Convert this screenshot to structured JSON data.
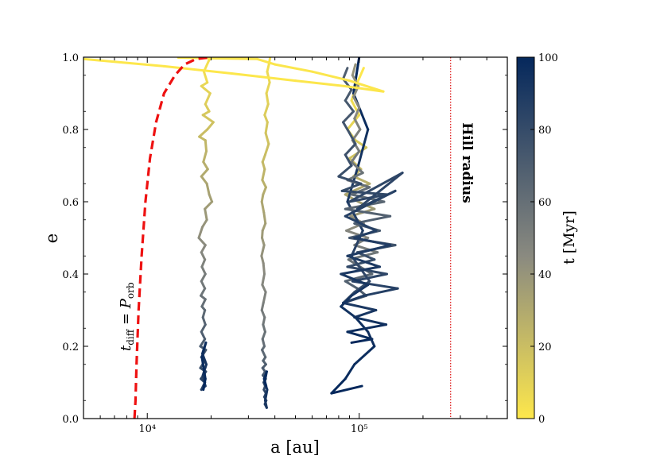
{
  "chart_data": {
    "type": "line",
    "xlabel": "a [au]",
    "ylabel": "e",
    "xscale": "log",
    "xlim": [
      5000,
      500000
    ],
    "ylim": [
      0,
      1
    ],
    "x_major_ticks": [
      {
        "value": 10000,
        "label": "10⁴"
      },
      {
        "value": 100000,
        "label": "10⁵"
      }
    ],
    "y_ticks": [
      {
        "value": 0.0,
        "label": "0.0"
      },
      {
        "value": 0.2,
        "label": "0.2"
      },
      {
        "value": 0.4,
        "label": "0.4"
      },
      {
        "value": 0.6,
        "label": "0.6"
      },
      {
        "value": 0.8,
        "label": "0.8"
      },
      {
        "value": 1.0,
        "label": "1.0"
      }
    ],
    "grid": false,
    "colorbar": {
      "label": "t [Myr]",
      "range": [
        0,
        100
      ],
      "ticks": [
        {
          "value": 0,
          "label": "0"
        },
        {
          "value": 20,
          "label": "20"
        },
        {
          "value": 40,
          "label": "40"
        },
        {
          "value": 60,
          "label": "60"
        },
        {
          "value": 80,
          "label": "80"
        },
        {
          "value": 100,
          "label": "100"
        }
      ],
      "color_low": "#fde74c",
      "color_mid": "#8a8a80",
      "color_high": "#05285c"
    },
    "annotations": {
      "hill_label": "Hill radius",
      "diff_label_main": "t",
      "diff_label_sub": "diff",
      "diff_label_eq": " = ",
      "diff_label_p": "P",
      "diff_label_psub": "orb"
    },
    "hill_radius": {
      "x": 270000,
      "color": "#e02020"
    },
    "diffusion_curve": {
      "color": "#ee1111",
      "points": [
        [
          8700,
          0.0
        ],
        [
          8800,
          0.05
        ],
        [
          8900,
          0.15
        ],
        [
          9100,
          0.3
        ],
        [
          9400,
          0.45
        ],
        [
          9800,
          0.6
        ],
        [
          10300,
          0.72
        ],
        [
          11000,
          0.82
        ],
        [
          12000,
          0.9
        ],
        [
          13500,
          0.95
        ],
        [
          15000,
          0.98
        ],
        [
          17000,
          0.995
        ],
        [
          20000,
          1.0
        ]
      ]
    },
    "series": [
      {
        "t_start": 2,
        "t_end": 100,
        "points": [
          [
            20000,
            1.0
          ],
          [
            19500,
            0.99
          ],
          [
            18500,
            0.96
          ],
          [
            19200,
            0.93
          ],
          [
            18000,
            0.92
          ],
          [
            19800,
            0.9
          ],
          [
            18800,
            0.87
          ],
          [
            19600,
            0.85
          ],
          [
            18300,
            0.84
          ],
          [
            20500,
            0.82
          ],
          [
            19200,
            0.8
          ],
          [
            17600,
            0.78
          ],
          [
            18800,
            0.77
          ],
          [
            19000,
            0.74
          ],
          [
            18400,
            0.71
          ],
          [
            19300,
            0.69
          ],
          [
            18000,
            0.67
          ],
          [
            19100,
            0.65
          ],
          [
            19600,
            0.62
          ],
          [
            20200,
            0.6
          ],
          [
            18700,
            0.58
          ],
          [
            19100,
            0.55
          ],
          [
            18200,
            0.53
          ],
          [
            17500,
            0.5
          ],
          [
            18800,
            0.48
          ],
          [
            18000,
            0.46
          ],
          [
            18700,
            0.44
          ],
          [
            18100,
            0.42
          ],
          [
            18800,
            0.4
          ],
          [
            18000,
            0.38
          ],
          [
            18700,
            0.36
          ],
          [
            17900,
            0.34
          ],
          [
            18800,
            0.33
          ],
          [
            18100,
            0.31
          ],
          [
            18700,
            0.3
          ],
          [
            18300,
            0.28
          ],
          [
            18800,
            0.26
          ],
          [
            18000,
            0.24
          ],
          [
            18700,
            0.22
          ],
          [
            17800,
            0.2
          ],
          [
            18900,
            0.19
          ],
          [
            18000,
            0.17
          ],
          [
            18700,
            0.16
          ],
          [
            17800,
            0.14
          ],
          [
            18900,
            0.13
          ],
          [
            17900,
            0.11
          ],
          [
            18700,
            0.1
          ],
          [
            18000,
            0.08
          ],
          [
            18800,
            0.09
          ],
          [
            18300,
            0.12
          ],
          [
            19000,
            0.15
          ],
          [
            18200,
            0.18
          ],
          [
            18900,
            0.21
          ],
          [
            18100,
            0.17
          ],
          [
            18800,
            0.11
          ],
          [
            18400,
            0.08
          ]
        ]
      },
      {
        "t_start": 3,
        "t_end": 100,
        "points": [
          [
            38000,
            1.0
          ],
          [
            37500,
            0.98
          ],
          [
            36800,
            0.96
          ],
          [
            37800,
            0.93
          ],
          [
            36500,
            0.9
          ],
          [
            37200,
            0.87
          ],
          [
            35800,
            0.84
          ],
          [
            36900,
            0.82
          ],
          [
            36200,
            0.79
          ],
          [
            37400,
            0.76
          ],
          [
            36000,
            0.73
          ],
          [
            35000,
            0.71
          ],
          [
            35800,
            0.69
          ],
          [
            34900,
            0.66
          ],
          [
            36300,
            0.64
          ],
          [
            35200,
            0.62
          ],
          [
            34700,
            0.6
          ],
          [
            35500,
            0.57
          ],
          [
            36100,
            0.54
          ],
          [
            35000,
            0.52
          ],
          [
            34800,
            0.5
          ],
          [
            35600,
            0.48
          ],
          [
            34600,
            0.45
          ],
          [
            35300,
            0.43
          ],
          [
            35700,
            0.4
          ],
          [
            34900,
            0.37
          ],
          [
            36200,
            0.35
          ],
          [
            35300,
            0.32
          ],
          [
            34700,
            0.3
          ],
          [
            35800,
            0.28
          ],
          [
            35200,
            0.26
          ],
          [
            36000,
            0.24
          ],
          [
            35000,
            0.22
          ],
          [
            35700,
            0.2
          ],
          [
            34800,
            0.19
          ],
          [
            36100,
            0.17
          ],
          [
            35200,
            0.16
          ],
          [
            36300,
            0.15
          ],
          [
            35000,
            0.14
          ],
          [
            36000,
            0.13
          ],
          [
            35100,
            0.12
          ],
          [
            36200,
            0.11
          ],
          [
            35400,
            0.1
          ],
          [
            36000,
            0.09
          ],
          [
            35500,
            0.08
          ],
          [
            36300,
            0.07
          ],
          [
            35700,
            0.06
          ],
          [
            36400,
            0.05
          ],
          [
            35900,
            0.04
          ],
          [
            36600,
            0.03
          ],
          [
            36000,
            0.05
          ],
          [
            36800,
            0.08
          ],
          [
            35800,
            0.1
          ],
          [
            36600,
            0.13
          ],
          [
            35600,
            0.11
          ],
          [
            36400,
            0.09
          ]
        ]
      },
      {
        "t_start": 0,
        "t_end": 100,
        "points": [
          [
            105000,
            0.97
          ],
          [
            98000,
            0.93
          ],
          [
            92000,
            0.88
          ],
          [
            100000,
            0.84
          ],
          [
            88000,
            0.8
          ],
          [
            96000,
            0.77
          ],
          [
            108000,
            0.75
          ],
          [
            90000,
            0.72
          ],
          [
            102000,
            0.69
          ],
          [
            94000,
            0.67
          ],
          [
            112000,
            0.65
          ],
          [
            86000,
            0.62
          ],
          [
            99000,
            0.6
          ],
          [
            118000,
            0.58
          ],
          [
            91000,
            0.56
          ],
          [
            105000,
            0.54
          ],
          [
            87000,
            0.52
          ],
          [
            110000,
            0.5
          ],
          [
            95000,
            0.48
          ],
          [
            122000,
            0.46
          ],
          [
            89000,
            0.44
          ],
          [
            101000,
            0.42
          ],
          [
            115000,
            0.4
          ],
          [
            86000,
            0.38
          ],
          [
            98000,
            0.36
          ],
          [
            108000,
            0.34
          ],
          [
            84000,
            0.32
          ],
          [
            95000,
            0.35
          ],
          [
            112000,
            0.38
          ],
          [
            92000,
            0.45
          ],
          [
            104000,
            0.52
          ],
          [
            88000,
            0.6
          ],
          [
            99000,
            0.7
          ],
          [
            110000,
            0.8
          ],
          [
            94000,
            0.9
          ],
          [
            100000,
            1.0
          ]
        ]
      },
      {
        "t_start": 40,
        "t_end": 100,
        "points": [
          [
            96000,
            0.98
          ],
          [
            93000,
            0.95
          ],
          [
            99000,
            0.92
          ],
          [
            94000,
            0.89
          ],
          [
            100000,
            0.86
          ],
          [
            95000,
            0.83
          ],
          [
            101000,
            0.8
          ],
          [
            93000,
            0.77
          ],
          [
            100000,
            0.74
          ],
          [
            92000,
            0.71
          ],
          [
            104000,
            0.68
          ],
          [
            88000,
            0.66
          ],
          [
            112000,
            0.64
          ],
          [
            92000,
            0.62
          ],
          [
            131000,
            0.6
          ],
          [
            86000,
            0.58
          ],
          [
            140000,
            0.56
          ],
          [
            95000,
            0.54
          ],
          [
            125000,
            0.52
          ],
          [
            90000,
            0.5
          ],
          [
            148000,
            0.48
          ],
          [
            98000,
            0.46
          ],
          [
            118000,
            0.44
          ],
          [
            88000,
            0.42
          ],
          [
            135000,
            0.4
          ],
          [
            93000,
            0.38
          ],
          [
            152000,
            0.36
          ],
          [
            105000,
            0.34
          ],
          [
            84000,
            0.32
          ],
          [
            120000,
            0.3
          ],
          [
            95000,
            0.28
          ],
          [
            134000,
            0.26
          ],
          [
            88000,
            0.24
          ],
          [
            115000,
            0.22
          ],
          [
            92000,
            0.21
          ]
        ]
      },
      {
        "t_start": 70,
        "t_end": 100,
        "points": [
          [
            88000,
            0.97
          ],
          [
            84000,
            0.94
          ],
          [
            92000,
            0.91
          ],
          [
            86000,
            0.88
          ],
          [
            94000,
            0.85
          ],
          [
            84000,
            0.82
          ],
          [
            90000,
            0.79
          ],
          [
            96000,
            0.76
          ],
          [
            86000,
            0.73
          ],
          [
            92000,
            0.7
          ],
          [
            80000,
            0.67
          ],
          [
            102000,
            0.65
          ],
          [
            83000,
            0.63
          ],
          [
            135000,
            0.62
          ],
          [
            90000,
            0.6
          ],
          [
            160000,
            0.68
          ],
          [
            98000,
            0.58
          ],
          [
            148000,
            0.63
          ],
          [
            86000,
            0.56
          ],
          [
            120000,
            0.52
          ],
          [
            95000,
            0.5
          ],
          [
            140000,
            0.48
          ],
          [
            88000,
            0.45
          ],
          [
            125000,
            0.42
          ],
          [
            82000,
            0.4
          ],
          [
            110000,
            0.37
          ],
          [
            92000,
            0.34
          ],
          [
            82000,
            0.31
          ],
          [
            96000,
            0.28
          ],
          [
            110000,
            0.24
          ],
          [
            118000,
            0.2
          ],
          [
            95000,
            0.15
          ],
          [
            86000,
            0.11
          ],
          [
            74000,
            0.07
          ],
          [
            103000,
            0.09
          ]
        ]
      },
      {
        "t_start": 0,
        "t_end": 1,
        "points": [
          [
            5000,
            0.995
          ],
          [
            12000,
            0.975
          ],
          [
            25000,
            0.955
          ],
          [
            50000,
            0.935
          ],
          [
            85000,
            0.92
          ],
          [
            130000,
            0.905
          ],
          [
            90000,
            0.935
          ],
          [
            60000,
            0.96
          ],
          [
            40000,
            0.98
          ],
          [
            33000,
            0.995
          ],
          [
            20000,
            0.997
          ],
          [
            14000,
            0.999
          ]
        ]
      }
    ]
  }
}
